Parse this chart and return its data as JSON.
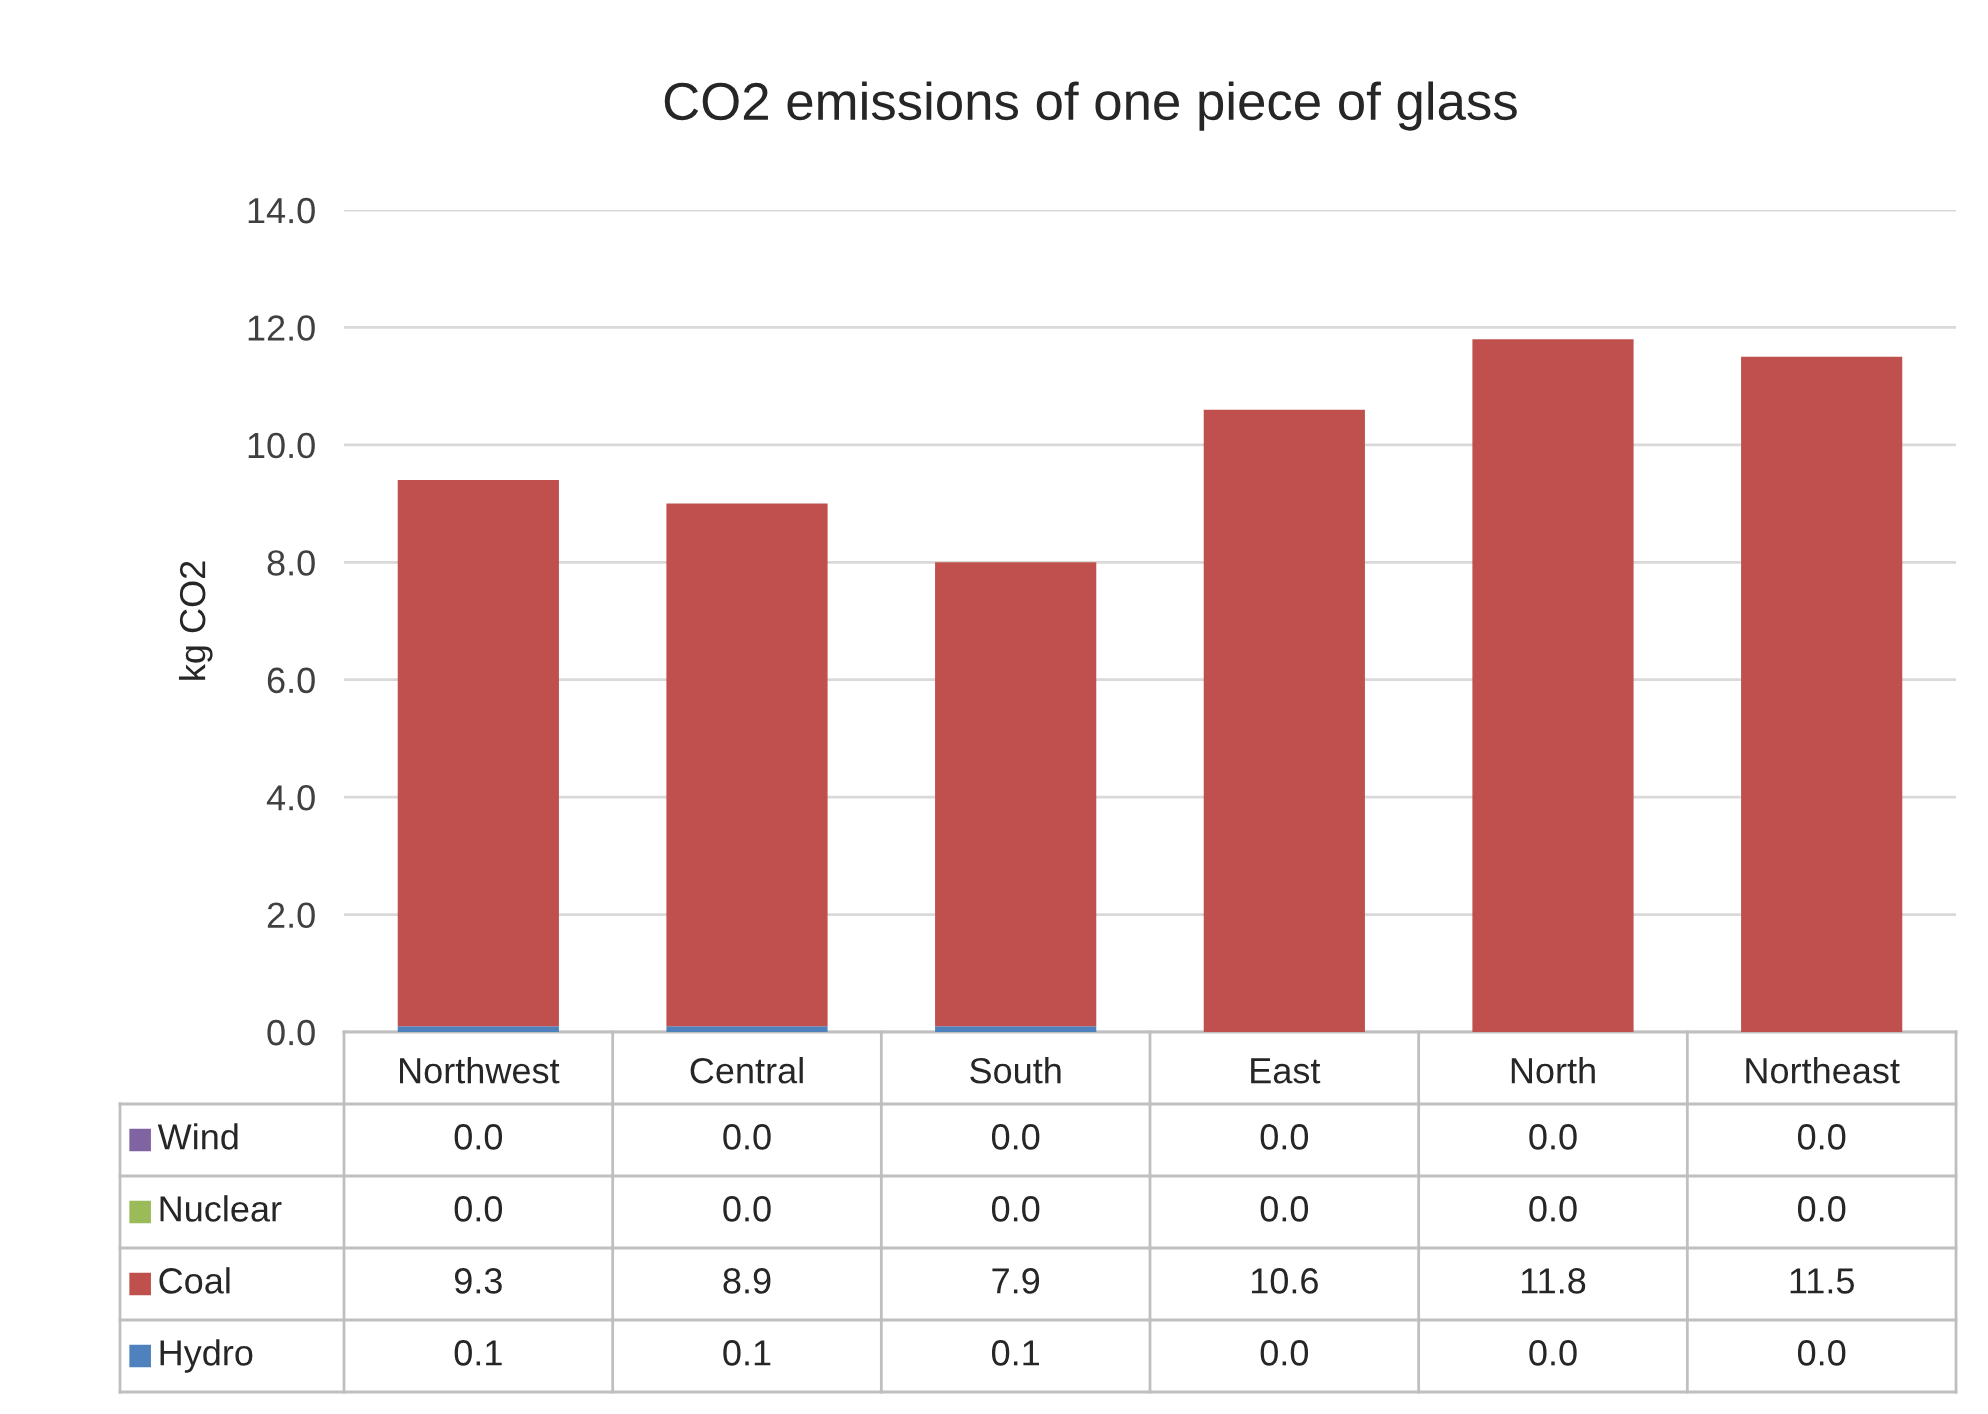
{
  "chart_data": {
    "type": "bar",
    "title": "CO2 emissions of one piece of glass",
    "ylabel": "kg CO2",
    "stacked": true,
    "categories": [
      "Northwest",
      "Central",
      "South",
      "East",
      "North",
      "Northeast"
    ],
    "series": [
      {
        "name": "Hydro",
        "color": "#4f81bd",
        "values": [
          0.1,
          0.1,
          0.1,
          0.0,
          0.0,
          0.0
        ],
        "value_labels": [
          "0.1",
          "0.1",
          "0.1",
          "0.0",
          "0.0",
          "0.0"
        ]
      },
      {
        "name": "Coal",
        "color": "#c0504d",
        "values": [
          9.3,
          8.9,
          7.9,
          10.6,
          11.8,
          11.5
        ],
        "value_labels": [
          "9.3",
          "8.9",
          "7.9",
          "10.6",
          "11.8",
          "11.5"
        ]
      },
      {
        "name": "Nuclear",
        "color": "#9bbb59",
        "values": [
          0.0,
          0.0,
          0.0,
          0.0,
          0.0,
          0.0
        ],
        "value_labels": [
          "0.0",
          "0.0",
          "0.0",
          "0.0",
          "0.0",
          "0.0"
        ]
      },
      {
        "name": "Wind",
        "color": "#8064a2",
        "values": [
          0.0,
          0.0,
          0.0,
          0.0,
          0.0,
          0.0
        ],
        "value_labels": [
          "0.0",
          "0.0",
          "0.0",
          "0.0",
          "0.0",
          "0.0"
        ]
      }
    ],
    "ylim": [
      0,
      14
    ],
    "yticks": [
      {
        "value": 0,
        "label": "0.0"
      },
      {
        "value": 2,
        "label": "2.0"
      },
      {
        "value": 4,
        "label": "4.0"
      },
      {
        "value": 6,
        "label": "6.0"
      },
      {
        "value": 8,
        "label": "8.0"
      },
      {
        "value": 10,
        "label": "10.0"
      },
      {
        "value": 12,
        "label": "12.0"
      },
      {
        "value": 14,
        "label": "14.0"
      }
    ],
    "grid": "y",
    "legend": "bottom"
  }
}
